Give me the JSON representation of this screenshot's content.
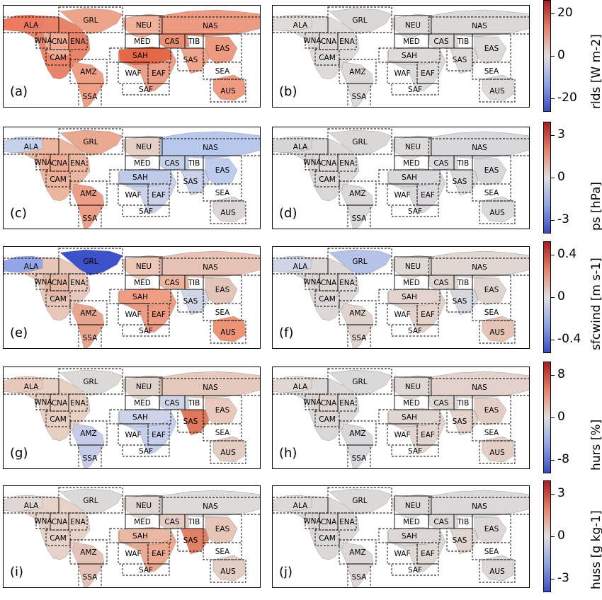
{
  "regions": [
    "ALA",
    "GRL",
    "NEU",
    "NAS",
    "WNA",
    "CNA",
    "ENA",
    "CAM",
    "MED",
    "CAS",
    "TIB",
    "EAS",
    "SAH",
    "SAS",
    "SEA",
    "AMZ",
    "WAF",
    "EAF",
    "SAF",
    "SSA",
    "AUS"
  ],
  "rows": [
    {
      "variable": "rlds",
      "unit_label": "rlds [W m-2]",
      "ticks": [
        "20",
        "0",
        "-20"
      ],
      "panels": [
        {
          "label": "(a)",
          "fills": {
            "NA": "#e8846a",
            "ALA": "#ef7a60",
            "GRL": "#eea38b",
            "CNA": "#f0ac94",
            "SA": "#ef9f86",
            "EUR": "#f1b29c",
            "NAS": "#ec9a82",
            "AFR": "#eaa088",
            "SAH": "#e56848",
            "CAS": "#eb8d72",
            "EASIA": "#ec9a80",
            "SASIA": "#efa58c",
            "AUS": "#ee9b82"
          }
        },
        {
          "label": "(b)",
          "fills": {
            "NA": "#dedad8",
            "ALA": "#e1dbd8",
            "GRL": "#dbd7d6",
            "CNA": "#ddd8d6",
            "SA": "#dcd9d8",
            "EUR": "#dedad8",
            "NAS": "#dcd8d7",
            "AFR": "#dedad8",
            "SAH": "#dedad8",
            "CAS": "#dcd9d8",
            "EASIA": "#dedad8",
            "SASIA": "#dedad8",
            "AUS": "#dedad8"
          }
        }
      ]
    },
    {
      "variable": "ps",
      "unit_label": "ps [hPa]",
      "ticks": [
        "3",
        "0",
        "-3"
      ],
      "panels": [
        {
          "label": "(c)",
          "fills": {
            "NA": "#ebb5a0",
            "ALA": "#c6d2ec",
            "GRL": "#e9a890",
            "CNA": "#eeab94",
            "SA": "#ec9f86",
            "EUR": "#e6cfc6",
            "NAS": "#b8c8ec",
            "AFR": "#c9d2e8",
            "SAH": "#bfcbe8",
            "CAS": "#c4cfea",
            "EASIA": "#bfcced",
            "SASIA": "#c8d1e8",
            "AUS": "#dcd6d6"
          }
        },
        {
          "label": "(d)",
          "fills": {
            "NA": "#dbd8d8",
            "ALA": "#d6d6da",
            "GRL": "#dbd7d6",
            "CNA": "#ddd8d6",
            "SA": "#dad8d8",
            "EUR": "#dedad8",
            "NAS": "#d7d7dc",
            "AFR": "#dad8da",
            "SAH": "#d9d8da",
            "CAS": "#dad8da",
            "EASIA": "#d9d8db",
            "SASIA": "#dad9da",
            "AUS": "#dcdada"
          }
        }
      ]
    },
    {
      "variable": "sfcwind",
      "unit_label": "sfcwind [m s-1]",
      "ticks": [
        "0.4",
        "0",
        "-0.4"
      ],
      "panels": [
        {
          "label": "(e)",
          "fills": {
            "NA": "#e7c7ba",
            "ALA": "#93a5e6",
            "GRL": "#3d52c8",
            "CNA": "#e4b6a4",
            "SA": "#e7a58e",
            "EUR": "#eec7b8",
            "NAS": "#e7c3b5",
            "AFR": "#ec9c82",
            "SAH": "#ef9e84",
            "CAS": "#ecb39e",
            "EASIA": "#e3c4b8",
            "SASIA": "#d2d5e4",
            "AUS": "#ec9475"
          }
        },
        {
          "label": "(f)",
          "fills": {
            "NA": "#ddd8d6",
            "ALA": "#cfd5e6",
            "GRL": "#b7c3e6",
            "CNA": "#ddd6d3",
            "SA": "#dfd3cc",
            "EUR": "#dfd8d5",
            "NAS": "#e0d6d2",
            "AFR": "#e2d2ca",
            "SAH": "#e2d3cc",
            "CAS": "#dfd5d0",
            "EASIA": "#dfd5d0",
            "SASIA": "#d6d8e0",
            "AUS": "#e5c4b6"
          }
        }
      ]
    },
    {
      "variable": "hurs",
      "unit_label": "hurs [%]",
      "ticks": [
        "8",
        "0",
        "-8"
      ],
      "panels": [
        {
          "label": "(g)",
          "fills": {
            "NA": "#e8cfc4",
            "ALA": "#e9c8bc",
            "GRL": "#ddd9d6",
            "CNA": "#e6cbbf",
            "SA": "#c6cce8",
            "EUR": "#dfd3cc",
            "NAS": "#e5c9bd",
            "AFR": "#c5cfe9",
            "SAH": "#cdd3e8",
            "CAS": "#cfd4e6",
            "EASIA": "#e8c9bc",
            "SASIA": "#dd7a5e",
            "AUS": "#e3cdc3"
          }
        },
        {
          "label": "(h)",
          "fills": {
            "NA": "#dcd8d7",
            "ALA": "#e0d6d2",
            "GRL": "#dbd9d8",
            "CNA": "#dfd6d2",
            "SA": "#d8d8dc",
            "EUR": "#dfd7d3",
            "NAS": "#e2d2cb",
            "AFR": "#e1d4cd",
            "SAH": "#dfd6d2",
            "CAS": "#dfd6d2",
            "EASIA": "#e3cec5",
            "SASIA": "#e2d2cb",
            "AUS": "#e3cfc6"
          }
        }
      ]
    },
    {
      "variable": "huss",
      "unit_label": "huss [g kg-1]",
      "ticks": [
        "3",
        "0",
        "-3"
      ],
      "panels": [
        {
          "label": "(i)",
          "fills": {
            "NA": "#e6d2c9",
            "ALA": "#dfd7d4",
            "GRL": "#dcd9d8",
            "CNA": "#e3d0c8",
            "SA": "#e4c3b6",
            "EUR": "#e0d6d2",
            "NAS": "#dedad8",
            "AFR": "#eaa990",
            "SAH": "#e9b9a5",
            "CAS": "#e3ccc2",
            "EASIA": "#e5c6b9",
            "SASIA": "#e08064",
            "AUS": "#e3cec5"
          }
        },
        {
          "label": "(j)",
          "fills": {
            "NA": "#dcd8d7",
            "ALA": "#dcd9d8",
            "GRL": "#dbd9d8",
            "CNA": "#ddd8d6",
            "SA": "#ddd8d6",
            "EUR": "#dcd9d8",
            "NAS": "#dbd9d9",
            "AFR": "#dfd7d3",
            "SAH": "#ddd8d6",
            "CAS": "#dcd9d8",
            "EASIA": "#ddd8d6",
            "SASIA": "#dfd6d2",
            "AUS": "#ddd8d6"
          }
        }
      ]
    }
  ]
}
